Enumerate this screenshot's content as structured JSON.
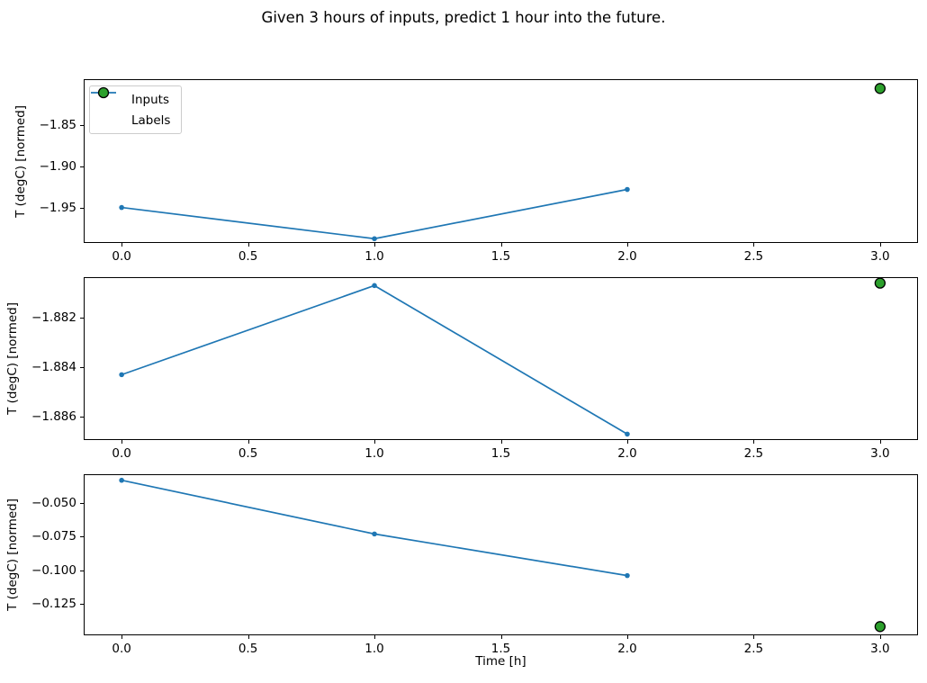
{
  "title": "Given 3 hours of inputs, predict 1 hour into the future.",
  "xlabel": "Time [h]",
  "colors": {
    "inputs_line": "#1f77b4",
    "labels_fill": "#2ca02c",
    "labels_edge": "#000000",
    "axis": "#000000",
    "background": "#ffffff"
  },
  "legend": {
    "position": "upper-left",
    "items": [
      {
        "label": "Inputs",
        "type": "line-marker",
        "color": "#1f77b4"
      },
      {
        "label": "Labels",
        "type": "circle",
        "color": "#2ca02c",
        "edge": "#000000"
      }
    ]
  },
  "chart_data": [
    {
      "type": "line",
      "ylabel": "T (degC) [normed]",
      "x": [
        0,
        1,
        2
      ],
      "series": [
        {
          "name": "Inputs",
          "values": [
            -1.95,
            -1.988,
            -1.928
          ]
        }
      ],
      "label_point": {
        "name": "Labels",
        "x": 3,
        "y": -1.805
      },
      "x_ticks": {
        "values": [
          0,
          0.5,
          1,
          1.5,
          2,
          2.5,
          3
        ],
        "labels": [
          "0.0",
          "0.5",
          "1.0",
          "1.5",
          "2.0",
          "2.5",
          "3.0"
        ]
      },
      "y_ticks": {
        "values": [
          -1.85,
          -1.9,
          -1.95
        ],
        "labels": [
          "−1.85",
          "−1.90",
          "−1.95"
        ]
      },
      "xlim": [
        -0.15,
        3.15
      ],
      "ylim": [
        -1.9932,
        -1.7937
      ],
      "grid": false
    },
    {
      "type": "line",
      "ylabel": "T (degC) [normed]",
      "x": [
        0,
        1,
        2
      ],
      "series": [
        {
          "name": "Inputs",
          "values": [
            -1.8843,
            -1.8807,
            -1.8867
          ]
        }
      ],
      "label_point": {
        "name": "Labels",
        "x": 3,
        "y": -1.8806
      },
      "x_ticks": {
        "values": [
          0,
          0.5,
          1,
          1.5,
          2,
          2.5,
          3
        ],
        "labels": [
          "0.0",
          "0.5",
          "1.0",
          "1.5",
          "2.0",
          "2.5",
          "3.0"
        ]
      },
      "y_ticks": {
        "values": [
          -1.882,
          -1.884,
          -1.886
        ],
        "labels": [
          "−1.882",
          "−1.884",
          "−1.886"
        ]
      },
      "xlim": [
        -0.15,
        3.15
      ],
      "ylim": [
        -1.88694,
        -1.88036
      ],
      "grid": false
    },
    {
      "type": "line",
      "ylabel": "T (degC) [normed]",
      "x": [
        0,
        1,
        2
      ],
      "series": [
        {
          "name": "Inputs",
          "values": [
            -0.033,
            -0.073,
            -0.104
          ]
        }
      ],
      "label_point": {
        "name": "Labels",
        "x": 3,
        "y": -0.142
      },
      "x_ticks": {
        "values": [
          0,
          0.5,
          1,
          1.5,
          2,
          2.5,
          3
        ],
        "labels": [
          "0.0",
          "0.5",
          "1.0",
          "1.5",
          "2.0",
          "2.5",
          "3.0"
        ]
      },
      "y_ticks": {
        "values": [
          -0.05,
          -0.075,
          -0.1,
          -0.125
        ],
        "labels": [
          "−0.050",
          "−0.075",
          "−0.100",
          "−0.125"
        ]
      },
      "xlim": [
        -0.15,
        3.15
      ],
      "ylim": [
        -0.1485,
        -0.0285
      ],
      "grid": false
    }
  ]
}
